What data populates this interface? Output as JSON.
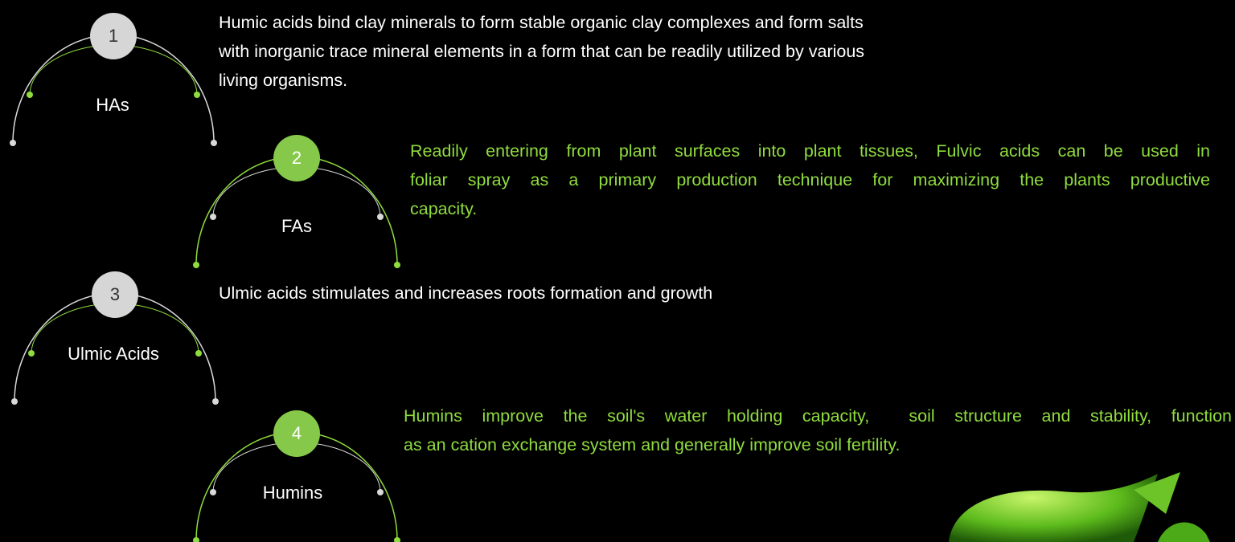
{
  "items": [
    {
      "number": "1",
      "label": "HAs",
      "lines": [
        "Humic acids bind clay minerals to form stable organic clay complexes and form salts",
        "with inorganic trace mineral elements in a form that can be readily utilized by various",
        "living organisms."
      ]
    },
    {
      "number": "2",
      "label": "FAs",
      "lines": [
        "Readily entering from plant surfaces into plant tissues, Fulvic acids can be used in",
        "foliar spray as a primary production technique for maximizing the plants productive",
        "capacity."
      ]
    },
    {
      "number": "3",
      "label": "Ulmic Acids",
      "lines": [
        "Ulmic acids stimulates and increases roots formation and growth"
      ]
    },
    {
      "number": "4",
      "label": "Humins",
      "lines": [
        "Humins improve the soil's water holding capacity,  soil structure and stability, function",
        "as an cation exchange system and generally improve soil fertility."
      ]
    }
  ]
}
